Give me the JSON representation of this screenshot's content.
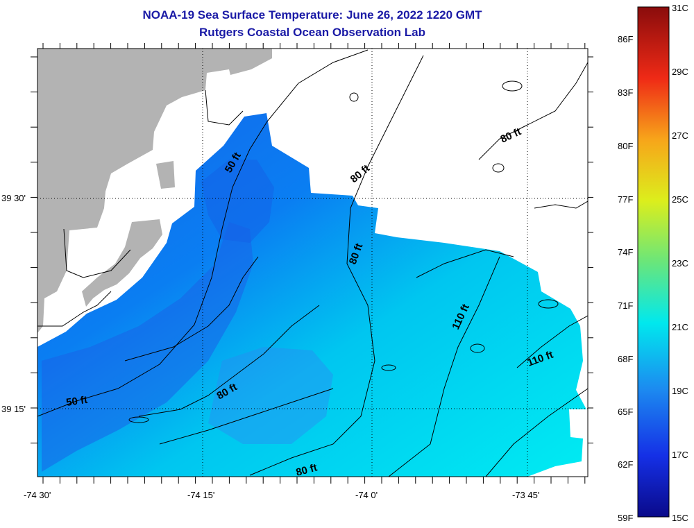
{
  "title": "NOAA-19 Sea Surface Temperature:  June 26, 2022 1220 GMT",
  "subtitle": "Rutgers Coastal Ocean Observation Lab",
  "map": {
    "lon_labels": [
      "-74 30'",
      "-74 15'",
      "-74 0'",
      "-73 45'"
    ],
    "lat_labels": [
      "39 30'",
      "39 15'"
    ],
    "contour_labels": [
      "50 ft",
      "80 ft",
      "80 ft",
      "80 ft",
      "110 ft",
      "110 ft",
      "50 ft",
      "80 ft",
      "80 ft"
    ],
    "colors": {
      "land": "#b3b3b3",
      "warm_water": "#00e6ee",
      "cool_water": "#1a6ef0",
      "contour": "#000000"
    }
  },
  "colorbar": {
    "fahrenheit_labels": [
      "86F",
      "83F",
      "80F",
      "77F",
      "74F",
      "71F",
      "68F",
      "65F",
      "62F",
      "59F"
    ],
    "celsius_labels": [
      "31C",
      "29C",
      "27C",
      "25C",
      "23C",
      "21C",
      "19C",
      "17C",
      "15C"
    ],
    "min_c": 15,
    "max_c": 31
  }
}
